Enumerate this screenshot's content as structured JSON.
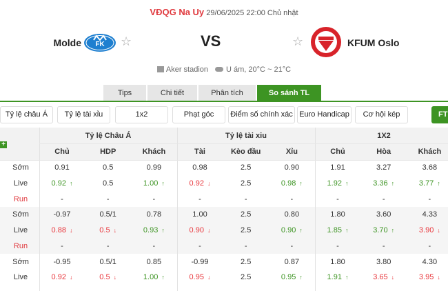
{
  "header": {
    "league": "VĐQG Na Uy",
    "datetime": "29/06/2025 22:00 Chủ nhật",
    "home": "Molde",
    "away": "KFUM Oslo",
    "vs": "VS",
    "venue": "Aker stadion",
    "weather": "U ám, 20°C ~ 21°C"
  },
  "tabs": [
    {
      "label": "Tips"
    },
    {
      "label": "Chi tiết"
    },
    {
      "label": "Phân tích"
    },
    {
      "label": "So sánh TL",
      "active": true
    }
  ],
  "filters": [
    "Tỷ lệ châu Á",
    "Tỷ lệ tài xỉu",
    "1x2",
    "Phạt góc",
    "Điểm số chính xác",
    "Euro Handicap",
    "Cơ hội kép"
  ],
  "ft_label": "FT",
  "table": {
    "groups": [
      "Tỷ lệ Châu Á",
      "Tỷ lệ tài xiu",
      "1X2"
    ],
    "columns": [
      "Chủ",
      "HDP",
      "Khách",
      "Tài",
      "Kèo đầu",
      "Xỉu",
      "Chủ",
      "Hòa",
      "Khách"
    ],
    "rows": [
      {
        "label": "Sớm",
        "cells": [
          [
            "0.91",
            ""
          ],
          [
            "0.5",
            ""
          ],
          [
            "0.99",
            ""
          ],
          [
            "0.98",
            ""
          ],
          [
            "2.5",
            ""
          ],
          [
            "0.90",
            ""
          ],
          [
            "1.91",
            ""
          ],
          [
            "3.27",
            ""
          ],
          [
            "3.68",
            ""
          ]
        ]
      },
      {
        "label": "Live",
        "cells": [
          [
            "0.92",
            "up"
          ],
          [
            "0.5",
            ""
          ],
          [
            "1.00",
            "up"
          ],
          [
            "0.92",
            "down"
          ],
          [
            "2.5",
            ""
          ],
          [
            "0.98",
            "up"
          ],
          [
            "1.92",
            "up"
          ],
          [
            "3.36",
            "up"
          ],
          [
            "3.77",
            "up"
          ]
        ]
      },
      {
        "label": "Run",
        "cells": [
          [
            "-",
            ""
          ],
          [
            "-",
            ""
          ],
          [
            "-",
            ""
          ],
          [
            "-",
            ""
          ],
          [
            "-",
            ""
          ],
          [
            "-",
            ""
          ],
          [
            "-",
            ""
          ],
          [
            "-",
            ""
          ],
          [
            "-",
            ""
          ]
        ]
      },
      {
        "label": "Sớm",
        "cells": [
          [
            "-0.97",
            ""
          ],
          [
            "0.5/1",
            ""
          ],
          [
            "0.78",
            ""
          ],
          [
            "1.00",
            ""
          ],
          [
            "2.5",
            ""
          ],
          [
            "0.80",
            ""
          ],
          [
            "1.80",
            ""
          ],
          [
            "3.60",
            ""
          ],
          [
            "4.33",
            ""
          ]
        ]
      },
      {
        "label": "Live",
        "cells": [
          [
            "0.88",
            "down"
          ],
          [
            "0.5",
            "down"
          ],
          [
            "0.93",
            "up"
          ],
          [
            "0.90",
            "down"
          ],
          [
            "2.5",
            ""
          ],
          [
            "0.90",
            "up"
          ],
          [
            "1.85",
            "up"
          ],
          [
            "3.70",
            "up"
          ],
          [
            "3.90",
            "down"
          ]
        ]
      },
      {
        "label": "Run",
        "cells": [
          [
            "-",
            ""
          ],
          [
            "-",
            ""
          ],
          [
            "-",
            ""
          ],
          [
            "-",
            ""
          ],
          [
            "-",
            ""
          ],
          [
            "-",
            ""
          ],
          [
            "-",
            ""
          ],
          [
            "-",
            ""
          ],
          [
            "-",
            ""
          ]
        ]
      },
      {
        "label": "Sớm",
        "cells": [
          [
            "-0.95",
            ""
          ],
          [
            "0.5/1",
            ""
          ],
          [
            "0.85",
            ""
          ],
          [
            "-0.99",
            ""
          ],
          [
            "2.5",
            ""
          ],
          [
            "0.87",
            ""
          ],
          [
            "1.80",
            ""
          ],
          [
            "3.80",
            ""
          ],
          [
            "4.30",
            ""
          ]
        ]
      },
      {
        "label": "Live",
        "cells": [
          [
            "0.92",
            "down"
          ],
          [
            "0.5",
            "down"
          ],
          [
            "1.00",
            "up"
          ],
          [
            "0.95",
            "down"
          ],
          [
            "2.5",
            ""
          ],
          [
            "0.95",
            "up"
          ],
          [
            "1.91",
            "up"
          ],
          [
            "3.65",
            "down"
          ],
          [
            "3.95",
            "down"
          ]
        ]
      }
    ]
  },
  "colors": {
    "accent": "#3d9423",
    "red": "#e8343a",
    "league": "#e0393e"
  }
}
